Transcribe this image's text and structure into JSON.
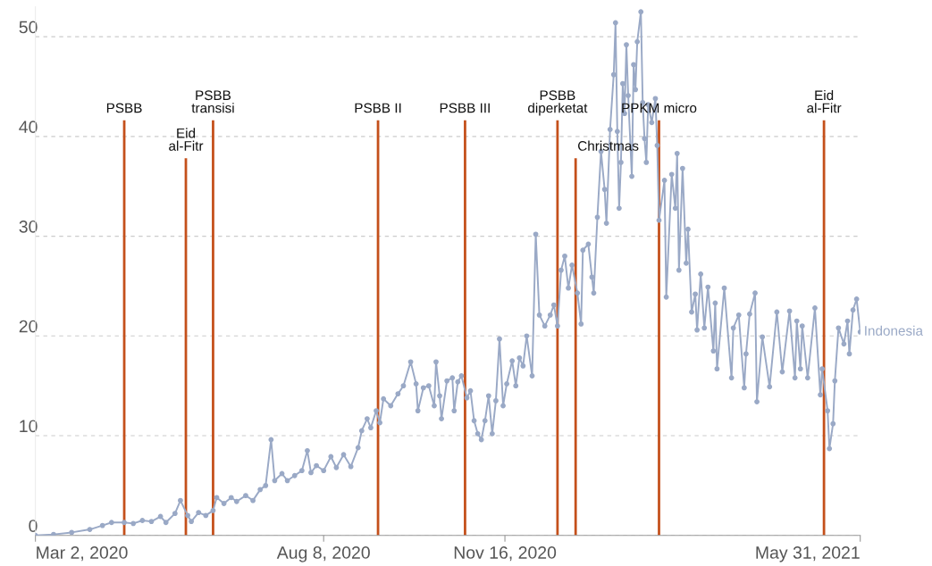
{
  "chart_data": {
    "type": "line",
    "x": [
      "2020-03-02",
      "2020-03-12",
      "2020-03-22",
      "2020-04-01",
      "2020-04-08",
      "2020-04-13",
      "2020-04-20",
      "2020-04-25",
      "2020-04-30",
      "2020-05-05",
      "2020-05-10",
      "2020-05-13",
      "2020-05-18",
      "2020-05-21",
      "2020-05-25",
      "2020-05-27",
      "2020-05-31",
      "2020-06-04",
      "2020-06-08",
      "2020-06-10",
      "2020-06-14",
      "2020-06-18",
      "2020-06-21",
      "2020-06-26",
      "2020-06-30",
      "2020-07-04",
      "2020-07-07",
      "2020-07-10",
      "2020-07-12",
      "2020-07-16",
      "2020-07-19",
      "2020-07-23",
      "2020-07-27",
      "2020-07-30",
      "2020-08-01",
      "2020-08-04",
      "2020-08-08",
      "2020-08-12",
      "2020-08-15",
      "2020-08-19",
      "2020-08-23",
      "2020-08-27",
      "2020-08-29",
      "2020-09-01",
      "2020-09-03",
      "2020-09-06",
      "2020-09-08",
      "2020-09-10",
      "2020-09-14",
      "2020-09-18",
      "2020-09-21",
      "2020-09-25",
      "2020-09-28",
      "2020-09-29",
      "2020-10-02",
      "2020-10-05",
      "2020-10-08",
      "2020-10-09",
      "2020-10-11",
      "2020-10-12",
      "2020-10-15",
      "2020-10-18",
      "2020-10-19",
      "2020-10-21",
      "2020-10-23",
      "2020-10-26",
      "2020-10-28",
      "2020-10-30",
      "2020-11-01",
      "2020-11-03",
      "2020-11-05",
      "2020-11-07",
      "2020-11-09",
      "2020-11-11",
      "2020-11-13",
      "2020-11-15",
      "2020-11-17",
      "2020-11-20",
      "2020-11-22",
      "2020-11-24",
      "2020-11-26",
      "2020-11-28",
      "2020-12-01",
      "2020-12-03",
      "2020-12-05",
      "2020-12-08",
      "2020-12-11",
      "2020-12-13",
      "2020-12-15",
      "2020-12-17",
      "2020-12-19",
      "2020-12-21",
      "2020-12-23",
      "2020-12-26",
      "2020-12-28",
      "2020-12-29",
      "2021-01-01",
      "2021-01-03",
      "2021-01-04",
      "2021-01-06",
      "2021-01-08",
      "2021-01-10",
      "2021-01-11",
      "2021-01-13",
      "2021-01-15",
      "2021-01-16",
      "2021-01-17",
      "2021-01-18",
      "2021-01-19",
      "2021-01-20",
      "2021-01-21",
      "2021-01-22",
      "2021-01-23",
      "2021-01-25",
      "2021-01-26",
      "2021-01-27",
      "2021-01-28",
      "2021-01-30",
      "2021-01-31",
      "2021-02-01",
      "2021-02-02",
      "2021-02-03",
      "2021-02-05",
      "2021-02-07",
      "2021-02-08",
      "2021-02-09",
      "2021-02-12",
      "2021-02-13",
      "2021-02-16",
      "2021-02-18",
      "2021-02-19",
      "2021-02-20",
      "2021-02-22",
      "2021-02-24",
      "2021-02-25",
      "2021-02-27",
      "2021-03-01",
      "2021-03-02",
      "2021-03-04",
      "2021-03-06",
      "2021-03-08",
      "2021-03-11",
      "2021-03-12",
      "2021-03-13",
      "2021-03-17",
      "2021-03-21",
      "2021-03-22",
      "2021-03-25",
      "2021-03-28",
      "2021-03-29",
      "2021-03-31",
      "2021-04-03",
      "2021-04-04",
      "2021-04-07",
      "2021-04-11",
      "2021-04-15",
      "2021-04-18",
      "2021-04-22",
      "2021-04-25",
      "2021-04-26",
      "2021-04-28",
      "2021-04-29",
      "2021-05-02",
      "2021-05-06",
      "2021-05-09",
      "2021-05-10",
      "2021-05-13",
      "2021-05-14",
      "2021-05-16",
      "2021-05-17",
      "2021-05-19",
      "2021-05-22",
      "2021-05-24",
      "2021-05-25",
      "2021-05-27",
      "2021-05-29",
      "2021-05-31"
    ],
    "series": [
      {
        "name": "Indonesia",
        "color": "#9aa9c6",
        "values": [
          0.0,
          0.1,
          0.3,
          0.6,
          1.0,
          1.3,
          1.3,
          1.2,
          1.5,
          1.4,
          1.9,
          1.3,
          2.2,
          3.5,
          2.0,
          1.4,
          2.3,
          2.0,
          2.5,
          3.8,
          3.2,
          3.8,
          3.4,
          4.0,
          3.5,
          4.6,
          5.0,
          9.6,
          5.5,
          6.2,
          5.5,
          6.0,
          6.5,
          8.5,
          6.3,
          7.0,
          6.5,
          7.9,
          6.8,
          8.1,
          6.9,
          8.8,
          10.5,
          11.7,
          10.8,
          12.5,
          11.3,
          13.7,
          13.0,
          14.2,
          15.0,
          17.4,
          15.2,
          12.5,
          14.8,
          15.0,
          13.0,
          17.4,
          14.0,
          11.7,
          15.5,
          15.8,
          12.5,
          15.4,
          16.0,
          13.8,
          14.5,
          11.5,
          10.2,
          9.6,
          11.5,
          14.0,
          10.2,
          13.5,
          19.7,
          13.0,
          15.2,
          17.5,
          15.0,
          17.8,
          17.0,
          20.0,
          16.0,
          30.2,
          22.1,
          21.0,
          22.1,
          23.1,
          21.0,
          26.6,
          28.0,
          24.8,
          27.1,
          24.3,
          21.2,
          28.6,
          29.2,
          25.9,
          24.3,
          31.9,
          38.5,
          34.7,
          31.3,
          40.7,
          46.2,
          51.4,
          40.5,
          32.8,
          37.4,
          45.3,
          42.3,
          49.2,
          44.1,
          36.0,
          47.2,
          44.7,
          49.5,
          52.5,
          43.4,
          39.8,
          37.4,
          43.2,
          41.4,
          43.8,
          39.1,
          31.6,
          35.6,
          23.9,
          36.2,
          32.8,
          38.3,
          26.6,
          36.8,
          27.3,
          30.7,
          22.4,
          24.2,
          20.6,
          26.2,
          20.8,
          24.9,
          18.5,
          23.3,
          16.7,
          24.8,
          15.8,
          20.8,
          22.1,
          14.8,
          18.2,
          22.2,
          24.3,
          13.4,
          19.9,
          14.9,
          22.4,
          16.4,
          22.5,
          15.8,
          21.5,
          16.7,
          21.0,
          15.8,
          22.8,
          14.1,
          16.7,
          12.5,
          8.7,
          11.2,
          15.5,
          20.8,
          19.2,
          21.5,
          18.2,
          22.6,
          23.7,
          20.4
        ]
      }
    ],
    "xlim": [
      "2020-03-02",
      "2021-05-31"
    ],
    "xticks": [
      {
        "value": "2020-03-02",
        "label": "Mar 2, 2020"
      },
      {
        "value": "2020-08-08",
        "label": "Aug 8, 2020"
      },
      {
        "value": "2020-11-16",
        "label": "Nov 16, 2020"
      },
      {
        "value": "2021-05-31",
        "label": "May 31, 2021"
      }
    ],
    "ylim": [
      0,
      53
    ],
    "yticks": [
      0,
      10,
      20,
      30,
      40,
      50
    ],
    "grid": "y",
    "marker": "circle",
    "line_style": "solid",
    "ref_lines": [
      {
        "axis": "x",
        "value": "2020-04-20",
        "label": "PSBB",
        "color": "#c4501b"
      },
      {
        "axis": "x",
        "value": "2020-05-24",
        "label": "Eid\nal-Fitr",
        "color": "#c4501b"
      },
      {
        "axis": "x",
        "value": "2020-06-08",
        "label": "PSBB\ntransisi",
        "color": "#c4501b"
      },
      {
        "axis": "x",
        "value": "2020-09-07",
        "label": "PSBB II",
        "color": "#c4501b"
      },
      {
        "axis": "x",
        "value": "2020-10-25",
        "label": "PSBB III",
        "color": "#c4501b"
      },
      {
        "axis": "x",
        "value": "2020-12-15",
        "label": "PSBB\ndiperketat",
        "color": "#c4501b"
      },
      {
        "axis": "x",
        "value": "2020-12-25",
        "label": "Christmas",
        "color": "#c4501b"
      },
      {
        "axis": "x",
        "value": "2021-02-09",
        "label": "PPKM micro",
        "color": "#c4501b"
      },
      {
        "axis": "x",
        "value": "2021-05-11",
        "label": "Eid\nal-Fitr",
        "color": "#c4501b"
      }
    ]
  }
}
